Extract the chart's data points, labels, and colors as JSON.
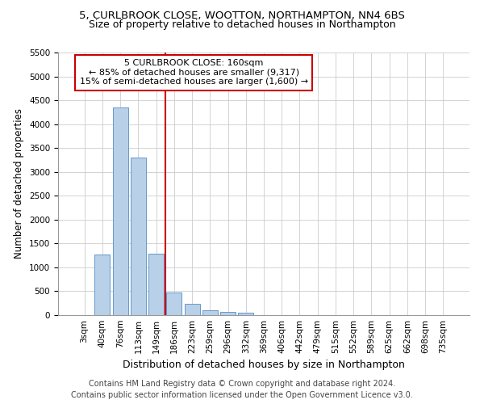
{
  "title1": "5, CURLBROOK CLOSE, WOOTTON, NORTHAMPTON, NN4 6BS",
  "title2": "Size of property relative to detached houses in Northampton",
  "xlabel": "Distribution of detached houses by size in Northampton",
  "ylabel": "Number of detached properties",
  "footer1": "Contains HM Land Registry data © Crown copyright and database right 2024.",
  "footer2": "Contains public sector information licensed under the Open Government Licence v3.0.",
  "annotation_line1": "5 CURLBROOK CLOSE: 160sqm",
  "annotation_line2": "← 85% of detached houses are smaller (9,317)",
  "annotation_line3": "15% of semi-detached houses are larger (1,600) →",
  "bar_color": "#b8d0e8",
  "bar_edge_color": "#6699cc",
  "vline_color": "#cc0000",
  "annotation_box_color": "#cc0000",
  "categories": [
    "3sqm",
    "40sqm",
    "76sqm",
    "113sqm",
    "149sqm",
    "186sqm",
    "223sqm",
    "259sqm",
    "296sqm",
    "332sqm",
    "369sqm",
    "406sqm",
    "442sqm",
    "479sqm",
    "515sqm",
    "552sqm",
    "589sqm",
    "625sqm",
    "662sqm",
    "698sqm",
    "735sqm"
  ],
  "values": [
    0,
    1270,
    4350,
    3300,
    1290,
    480,
    240,
    110,
    70,
    50,
    0,
    0,
    0,
    0,
    0,
    0,
    0,
    0,
    0,
    0,
    0
  ],
  "vline_x": 4.5,
  "ylim": [
    0,
    5500
  ],
  "yticks": [
    0,
    500,
    1000,
    1500,
    2000,
    2500,
    3000,
    3500,
    4000,
    4500,
    5000,
    5500
  ],
  "background_color": "#ffffff",
  "grid_color": "#cccccc",
  "title_fontsize": 9.5,
  "subtitle_fontsize": 9,
  "ylabel_fontsize": 8.5,
  "xlabel_fontsize": 9,
  "tick_fontsize": 7.5,
  "footer_fontsize": 7
}
